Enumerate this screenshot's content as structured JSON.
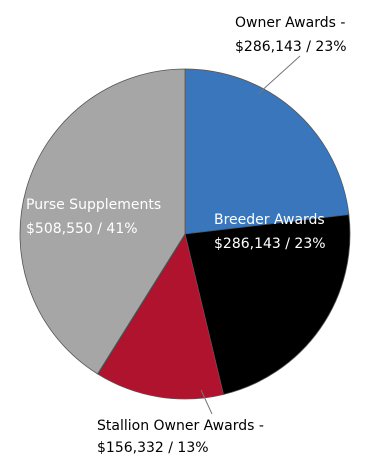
{
  "chart_data": {
    "type": "pie",
    "slices": [
      {
        "name": "Owner Awards",
        "label_line1": "Owner Awards -",
        "label_line2": "$286,143 / 23%",
        "value": 286143,
        "percent": 23,
        "color": "#3a76bb"
      },
      {
        "name": "Breeder Awards",
        "label_line1": "Breeder Awards",
        "label_line2": "$286,143 / 23%",
        "value": 286143,
        "percent": 23,
        "color": "#000000"
      },
      {
        "name": "Stallion Owner Awards",
        "label_line1": "Stallion Owner Awards -",
        "label_line2": "$156,332 / 13%",
        "value": 156332,
        "percent": 13,
        "color": "#b0132e"
      },
      {
        "name": "Purse Supplements",
        "label_line1": "Purse Supplements",
        "label_line2": "$508,550 / 41%",
        "value": 508550,
        "percent": 41,
        "color": "#a6a6a6"
      }
    ],
    "start_angle_deg": 0,
    "legend": "none"
  }
}
